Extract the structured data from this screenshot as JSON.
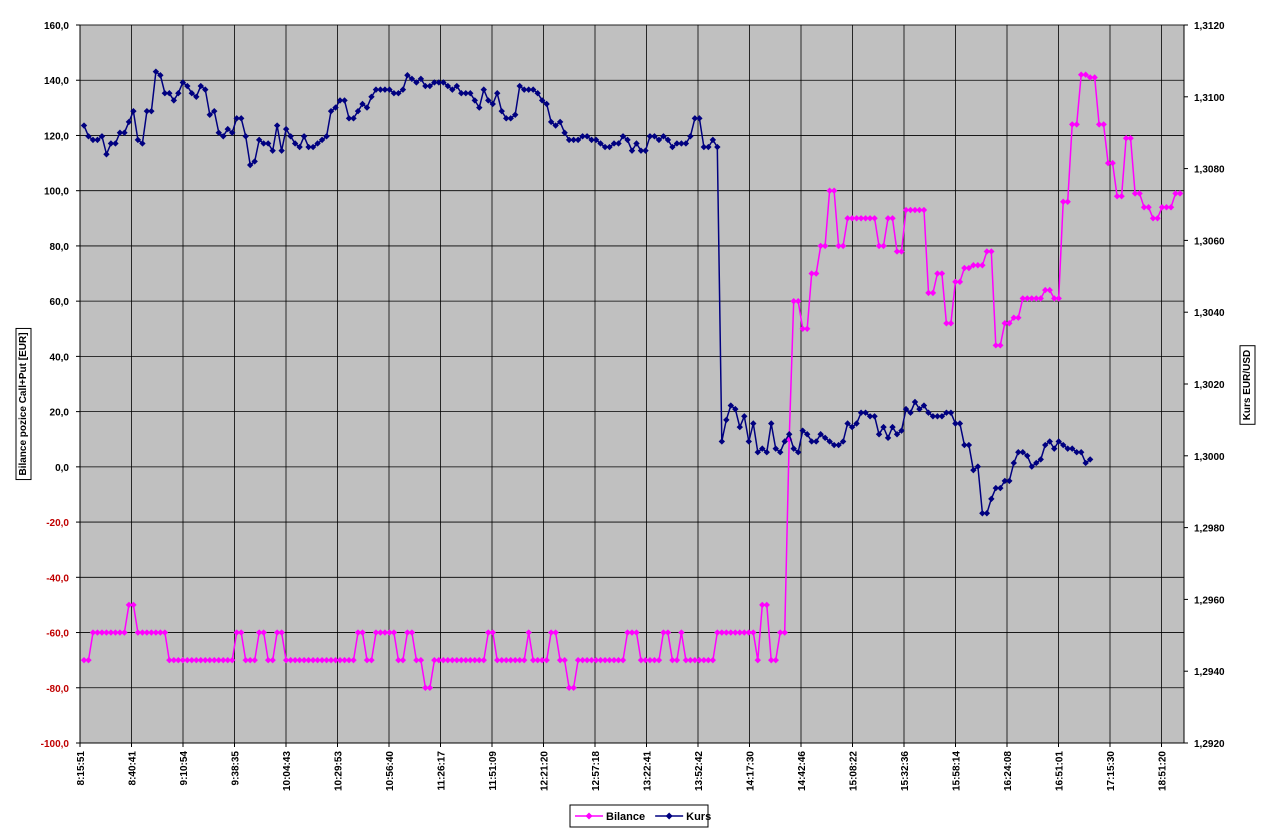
{
  "chart_data": {
    "type": "line",
    "title": "",
    "y_left_label": "Bilance pozice Call+Put [EUR]",
    "y_right_label": "Kurs EUR/USD",
    "y_left_range": [
      -100,
      160
    ],
    "y_right_range": [
      1.292,
      1.312
    ],
    "y_left_ticks": [
      "-100,0",
      "-80,0",
      "-60,0",
      "-40,0",
      "-20,0",
      "0,0",
      "20,0",
      "40,0",
      "60,0",
      "80,0",
      "100,0",
      "120,0",
      "140,0",
      "160,0"
    ],
    "y_right_ticks": [
      "1,2920",
      "1,2940",
      "1,2960",
      "1,2980",
      "1,3000",
      "1,3020",
      "1,3040",
      "1,3060",
      "1,3080",
      "1,3100",
      "1,3120"
    ],
    "x_ticks": [
      "8:15:51",
      "8:40:41",
      "9:10:54",
      "9:38:35",
      "10:04:43",
      "10:29:53",
      "10:56:40",
      "11:26:17",
      "11:51:09",
      "12:21:20",
      "12:57:18",
      "13:22:41",
      "13:52:42",
      "14:17:30",
      "14:42:46",
      "15:08:22",
      "15:32:36",
      "15:58:14",
      "16:24:08",
      "16:51:01",
      "17:15:30",
      "18:51:20"
    ],
    "grid": true,
    "legend_position": "bottom",
    "series": [
      {
        "name": "Bilance",
        "axis": "left",
        "color": "#ff00ff",
        "values": [
          -70,
          -70,
          -60,
          -60,
          -60,
          -60,
          -60,
          -60,
          -60,
          -60,
          -50,
          -50,
          -60,
          -60,
          -60,
          -60,
          -60,
          -60,
          -60,
          -70,
          -70,
          -70,
          -70,
          -70,
          -70,
          -70,
          -70,
          -70,
          -70,
          -70,
          -70,
          -70,
          -70,
          -70,
          -60,
          -60,
          -70,
          -70,
          -70,
          -60,
          -60,
          -70,
          -70,
          -60,
          -60,
          -70,
          -70,
          -70,
          -70,
          -70,
          -70,
          -70,
          -70,
          -70,
          -70,
          -70,
          -70,
          -70,
          -70,
          -70,
          -70,
          -60,
          -60,
          -70,
          -70,
          -60,
          -60,
          -60,
          -60,
          -60,
          -70,
          -70,
          -60,
          -60,
          -70,
          -70,
          -80,
          -80,
          -70,
          -70,
          -70,
          -70,
          -70,
          -70,
          -70,
          -70,
          -70,
          -70,
          -70,
          -70,
          -60,
          -60,
          -70,
          -70,
          -70,
          -70,
          -70,
          -70,
          -70,
          -60,
          -70,
          -70,
          -70,
          -70,
          -60,
          -60,
          -70,
          -70,
          -80,
          -80,
          -70,
          -70,
          -70,
          -70,
          -70,
          -70,
          -70,
          -70,
          -70,
          -70,
          -70,
          -60,
          -60,
          -60,
          -70,
          -70,
          -70,
          -70,
          -70,
          -60,
          -60,
          -70,
          -70,
          -60,
          -70,
          -70,
          -70,
          -70,
          -70,
          -70,
          -70,
          -60,
          -60,
          -60,
          -60,
          -60,
          -60,
          -60,
          -60,
          -60,
          -70,
          -50,
          -50,
          -70,
          -70,
          -60,
          -60,
          10,
          60,
          60,
          50,
          50,
          70,
          70,
          80,
          80,
          100,
          100,
          80,
          80,
          90,
          90,
          90,
          90,
          90,
          90,
          90,
          80,
          80,
          90,
          90,
          78,
          78,
          93,
          93,
          93,
          93,
          93,
          63,
          63,
          70,
          70,
          52,
          52,
          67,
          67,
          72,
          72,
          73,
          73,
          73,
          78,
          78,
          44,
          44,
          52,
          52,
          54,
          54,
          61,
          61,
          61,
          61,
          61,
          64,
          64,
          61,
          61,
          96,
          96,
          124,
          124,
          142,
          142,
          141,
          141,
          124,
          124,
          110,
          110,
          98,
          98,
          119,
          119,
          99,
          99,
          94,
          94,
          90,
          90,
          94,
          94,
          94,
          99,
          99
        ]
      },
      {
        "name": "Kurs",
        "axis": "right",
        "color": "#000080",
        "values": [
          1.3092,
          1.3089,
          1.3088,
          1.3088,
          1.3089,
          1.3084,
          1.3087,
          1.3087,
          1.309,
          1.309,
          1.3093,
          1.3096,
          1.3088,
          1.3087,
          1.3096,
          1.3096,
          1.3107,
          1.3106,
          1.3101,
          1.3101,
          1.3099,
          1.3101,
          1.3104,
          1.3103,
          1.3101,
          1.31,
          1.3103,
          1.3102,
          1.3095,
          1.3096,
          1.309,
          1.3089,
          1.3091,
          1.309,
          1.3094,
          1.3094,
          1.3089,
          1.3081,
          1.3082,
          1.3088,
          1.3087,
          1.3087,
          1.3085,
          1.3092,
          1.3085,
          1.3091,
          1.3089,
          1.3087,
          1.3086,
          1.3089,
          1.3086,
          1.3086,
          1.3087,
          1.3088,
          1.3089,
          1.3096,
          1.3097,
          1.3099,
          1.3099,
          1.3094,
          1.3094,
          1.3096,
          1.3098,
          1.3097,
          1.31,
          1.3102,
          1.3102,
          1.3102,
          1.3102,
          1.3101,
          1.3101,
          1.3102,
          1.3106,
          1.3105,
          1.3104,
          1.3105,
          1.3103,
          1.3103,
          1.3104,
          1.3104,
          1.3104,
          1.3103,
          1.3102,
          1.3103,
          1.3101,
          1.3101,
          1.3101,
          1.3099,
          1.3097,
          1.3102,
          1.3099,
          1.3098,
          1.3101,
          1.3096,
          1.3094,
          1.3094,
          1.3095,
          1.3103,
          1.3102,
          1.3102,
          1.3102,
          1.3101,
          1.3099,
          1.3098,
          1.3093,
          1.3092,
          1.3093,
          1.309,
          1.3088,
          1.3088,
          1.3088,
          1.3089,
          1.3089,
          1.3088,
          1.3088,
          1.3087,
          1.3086,
          1.3086,
          1.3087,
          1.3087,
          1.3089,
          1.3088,
          1.3085,
          1.3087,
          1.3085,
          1.3085,
          1.3089,
          1.3089,
          1.3088,
          1.3089,
          1.3088,
          1.3086,
          1.3087,
          1.3087,
          1.3087,
          1.3089,
          1.3094,
          1.3094,
          1.3086,
          1.3086,
          1.3088,
          1.3086,
          1.3004,
          1.301,
          1.3014,
          1.3013,
          1.3008,
          1.3011,
          1.3004,
          1.3009,
          1.3001,
          1.3002,
          1.3001,
          1.3009,
          1.3002,
          1.3001,
          1.3004,
          1.3006,
          1.3002,
          1.3001,
          1.3007,
          1.3006,
          1.3004,
          1.3004,
          1.3006,
          1.3005,
          1.3004,
          1.3003,
          1.3003,
          1.3004,
          1.3009,
          1.3008,
          1.3009,
          1.3012,
          1.3012,
          1.3011,
          1.3011,
          1.3006,
          1.3008,
          1.3005,
          1.3008,
          1.3006,
          1.3007,
          1.3013,
          1.3012,
          1.3015,
          1.3013,
          1.3014,
          1.3012,
          1.3011,
          1.3011,
          1.3011,
          1.3012,
          1.3012,
          1.3009,
          1.3009,
          1.3003,
          1.3003,
          1.2996,
          1.2997,
          1.2984,
          1.2984,
          1.2988,
          1.2991,
          1.2991,
          1.2993,
          1.2993,
          1.2998,
          1.3001,
          1.3001,
          1.3,
          1.2997,
          1.2998,
          1.2999,
          1.3003,
          1.3004,
          1.3002,
          1.3004,
          1.3003,
          1.3002,
          1.3002,
          1.3001,
          1.3001,
          1.2998,
          1.2999
        ]
      }
    ]
  }
}
